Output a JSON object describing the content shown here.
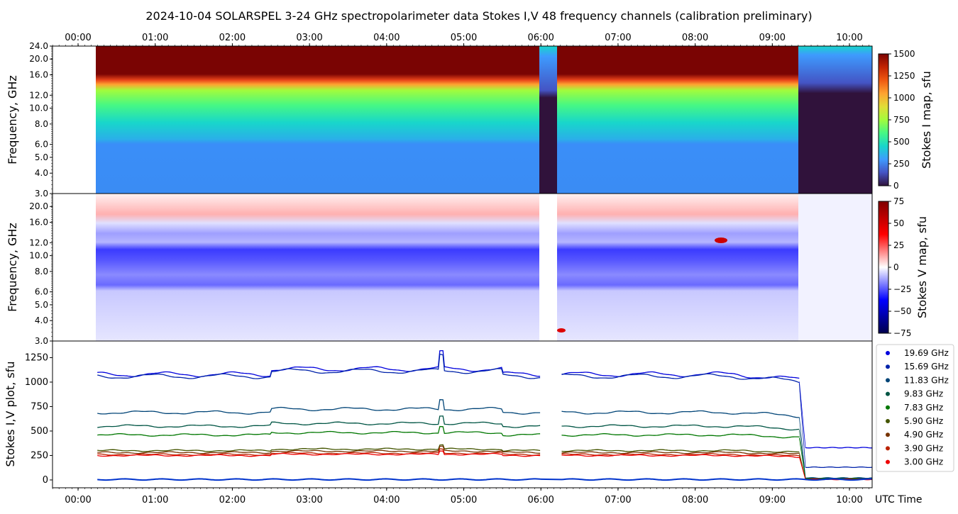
{
  "title": "2024-10-04  SOLARSPEL  3-24 GHz spectropolarimeter data   Stokes I,V   48 frequency channels   (calibration preliminary)",
  "time_ticks": [
    "00:00",
    "01:00",
    "02:00",
    "03:00",
    "04:00",
    "05:00",
    "06:00",
    "07:00",
    "08:00",
    "09:00",
    "10:00"
  ],
  "xlabel": "UTC Time",
  "colors": {
    "series": [
      "#0000dd",
      "#0022aa",
      "#004477",
      "#005544",
      "#007700",
      "#445500",
      "#773300",
      "#bb2200",
      "#ee0000"
    ]
  },
  "chart_data": [
    {
      "type": "heatmap",
      "panel": "stokes_i",
      "xlim": [
        "23:40",
        "10:25"
      ],
      "ylabel": "Frequency, GHz",
      "yticks": [
        "24.0",
        "20.0",
        "16.0",
        "12.0",
        "10.0",
        "8.0",
        "6.0",
        "5.0",
        "4.0",
        "3.0"
      ],
      "ylim": [
        3.0,
        24.0
      ],
      "y_scale": "log",
      "colorbar_label": "Stokes I map, sfu",
      "colorbar_ticks": [
        "1500",
        "1250",
        "1000",
        "750",
        "500",
        "250",
        "0"
      ],
      "colorbar_range": [
        0,
        1500
      ],
      "colormap": "turbo",
      "data_start": "00:15",
      "gaps": [
        [
          "06:00",
          "06:15"
        ]
      ],
      "drop_time": "09:20"
    },
    {
      "type": "heatmap",
      "panel": "stokes_v",
      "xlim": [
        "23:40",
        "10:25"
      ],
      "ylabel": "Frequency, GHz",
      "yticks": [
        "20.0",
        "16.0",
        "12.0",
        "10.0",
        "8.0",
        "6.0",
        "5.0",
        "4.0",
        "3.0"
      ],
      "ylim": [
        3.0,
        24.0
      ],
      "y_scale": "log",
      "colorbar_label": "Stokes V map, sfu",
      "colorbar_ticks": [
        "75",
        "50",
        "25",
        "0",
        "−25",
        "−50",
        "−75"
      ],
      "colorbar_range": [
        -75,
        75
      ],
      "colormap": "seismic"
    },
    {
      "type": "scatter",
      "panel": "stokes_plot",
      "ylabel": "Stokes I,V plot, sfu",
      "yticks": [
        "1250",
        "1000",
        "750",
        "500",
        "250",
        "0"
      ],
      "ylim": [
        -80,
        1420
      ],
      "legend_position": "right",
      "series": [
        {
          "name": "19.69 GHz",
          "before": 1080,
          "after": 330
        },
        {
          "name": "15.69 GHz",
          "before": 1060,
          "after": 130
        },
        {
          "name": "11.83 GHz",
          "before": 690,
          "after": 20
        },
        {
          "name": "9.83 GHz",
          "before": 550,
          "after": 15
        },
        {
          "name": "7.83 GHz",
          "before": 460,
          "after": 10
        },
        {
          "name": "5.90 GHz",
          "before": 300,
          "after": 8
        },
        {
          "name": "4.90 GHz",
          "before": 280,
          "after": 8
        },
        {
          "name": "3.90 GHz",
          "before": 260,
          "after": 6
        },
        {
          "name": "3.00 GHz",
          "before": 250,
          "after": 5
        }
      ]
    }
  ]
}
